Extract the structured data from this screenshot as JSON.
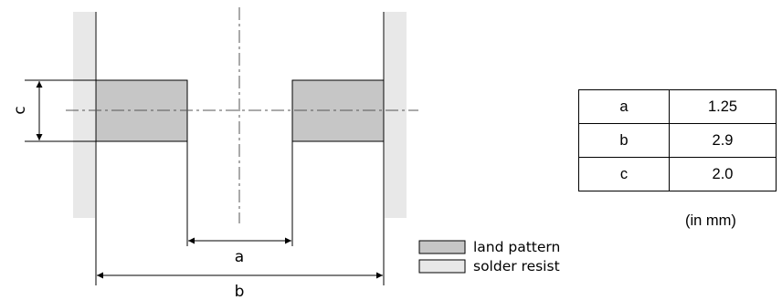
{
  "diagram": {
    "label_a": "a",
    "label_b": "b",
    "label_c": "c"
  },
  "legend": {
    "items": [
      {
        "label": "land pattern",
        "color": "#c6c6c6"
      },
      {
        "label": "solder resist",
        "color": "#e8e8e8"
      }
    ]
  },
  "dimensions_table": {
    "rows": [
      {
        "key": "a",
        "value": "1.25"
      },
      {
        "key": "b",
        "value": "2.9"
      },
      {
        "key": "c",
        "value": "2.0"
      }
    ],
    "unit_note": "(in mm)"
  }
}
